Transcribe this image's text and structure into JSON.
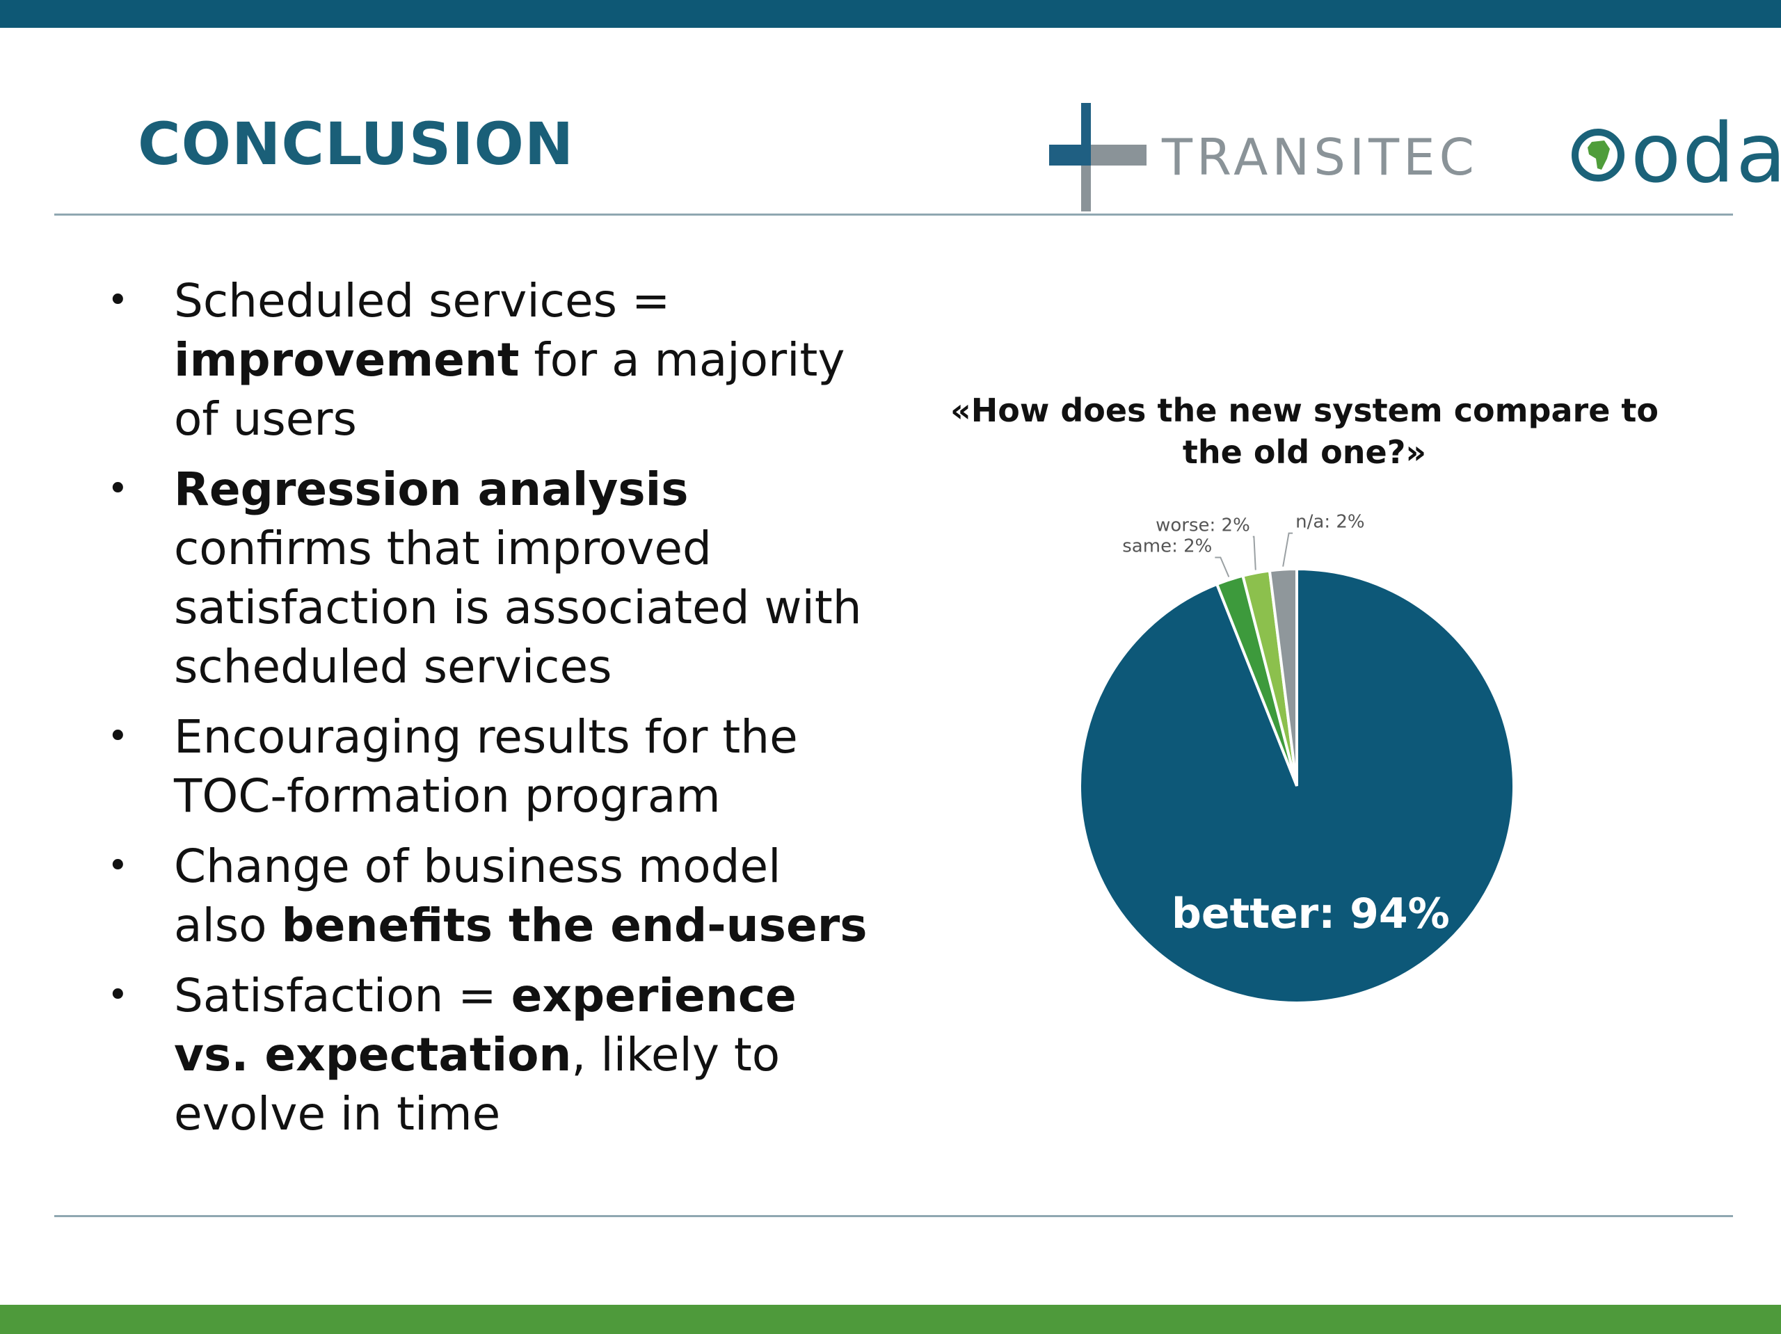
{
  "slide": {
    "title": "CONCLUSION",
    "logos": {
      "transitec": "TRANSITEC",
      "oda": "oda"
    },
    "colors": {
      "top_bar": "#0e5875",
      "bottom_bar": "#4e9a3b",
      "title": "#1a5f78",
      "rule": "#8fa7b1",
      "logo_blue": "#1f5f82",
      "logo_grey": "#8a9398",
      "oda_text": "#1b6279",
      "oda_globe": "#4f9d3a"
    }
  },
  "bullets": [
    {
      "segments": [
        {
          "text": "Scheduled services = ",
          "bold": false
        },
        {
          "text": "improvement",
          "bold": true
        },
        {
          "text": " for a majority of users",
          "bold": false
        }
      ]
    },
    {
      "segments": [
        {
          "text": "Regression analysis",
          "bold": true
        },
        {
          "text": " confirms that improved satisfaction is associated with scheduled services",
          "bold": false
        }
      ]
    },
    {
      "segments": [
        {
          "text": "Encouraging results for the TOC-formation program",
          "bold": false
        }
      ]
    },
    {
      "segments": [
        {
          "text": "Change of business model also ",
          "bold": false
        },
        {
          "text": "benefits the end-users",
          "bold": true
        }
      ]
    },
    {
      "segments": [
        {
          "text": "Satisfaction = ",
          "bold": false
        },
        {
          "text": "experience vs. expectation",
          "bold": true
        },
        {
          "text": ", likely to evolve in time",
          "bold": false
        }
      ]
    }
  ],
  "chart_data": {
    "type": "pie",
    "title": "«How does the new system compare to the old one?»",
    "slices": [
      {
        "label": "better",
        "value": 94,
        "display": "better: 94%",
        "color": "#0d5878",
        "label_color": "#ffffff"
      },
      {
        "label": "same",
        "value": 2,
        "display": "same: 2%",
        "color": "#3d9a3c",
        "label_color": "#555555"
      },
      {
        "label": "worse",
        "value": 2,
        "display": "worse: 2%",
        "color": "#8cc04d",
        "label_color": "#555555"
      },
      {
        "label": "n/a",
        "value": 2,
        "display": "n/a: 2%",
        "color": "#8f979b",
        "label_color": "#555555"
      }
    ],
    "start": "12 o'clock, clockwise",
    "legend": "none (data labels)"
  }
}
